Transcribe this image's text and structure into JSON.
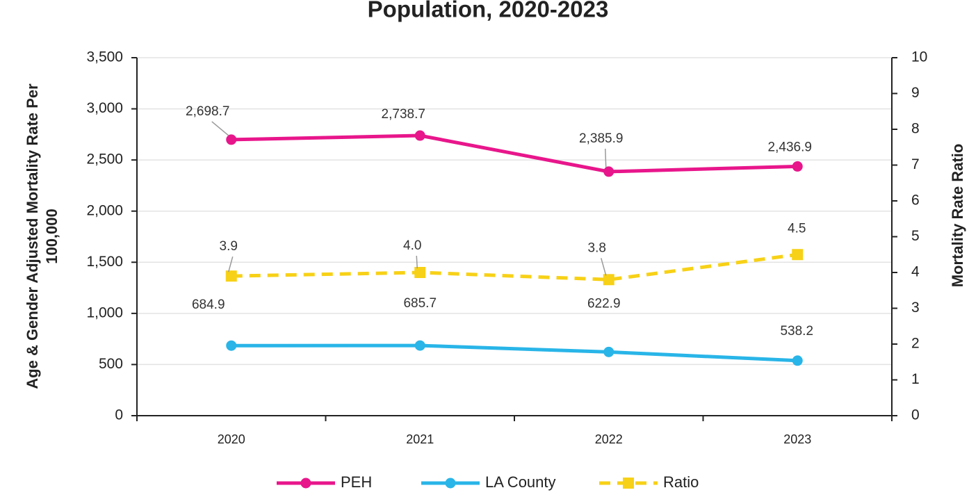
{
  "chart_data": {
    "type": "line",
    "title": "Population, 2020-2023",
    "ylabel": [
      "Age & Gender Adjusted Mortality Rate Per",
      "100,000"
    ],
    "y2label": "Mortality Rate Ratio",
    "categories": [
      "2020",
      "2021",
      "2022",
      "2023"
    ],
    "ylim": [
      0,
      3500
    ],
    "yticks": [
      0,
      500,
      {
        "value": 1000,
        "label": "1,000"
      },
      {
        "value": 1500,
        "label": "1,500"
      },
      {
        "value": 2000,
        "label": "2,000"
      },
      {
        "value": 2500,
        "label": "2,500"
      },
      {
        "value": 3000,
        "label": "3,000"
      },
      {
        "value": 3500,
        "label": "3,500"
      }
    ],
    "y2lim": [
      0,
      10
    ],
    "y2ticks": [
      0,
      1,
      2,
      3,
      4,
      5,
      6,
      7,
      8,
      9,
      10
    ],
    "grid": true,
    "legend": "bottom",
    "series": [
      {
        "name": "PEH",
        "color": "#e8168b",
        "marker": "circle",
        "dashed": false,
        "values": [
          2698.7,
          2738.7,
          2385.9,
          2436.9
        ],
        "value_labels": [
          "2,698.7",
          "2,738.7",
          "2,385.9",
          "2,436.9"
        ]
      },
      {
        "name": "LA County",
        "color": "#29b5e8",
        "marker": "circle",
        "dashed": false,
        "values": [
          684.9,
          685.7,
          622.9,
          538.2
        ],
        "value_labels": [
          "684.9",
          "685.7",
          "622.9",
          "538.2"
        ]
      },
      {
        "name": "Ratio",
        "color": "#f7d117",
        "marker": "square",
        "dashed": true,
        "axis": "y2",
        "values": [
          3.9,
          4.0,
          3.8,
          4.5
        ],
        "value_labels": [
          "3.9",
          "4.0",
          "3.8",
          "4.5"
        ]
      }
    ]
  }
}
